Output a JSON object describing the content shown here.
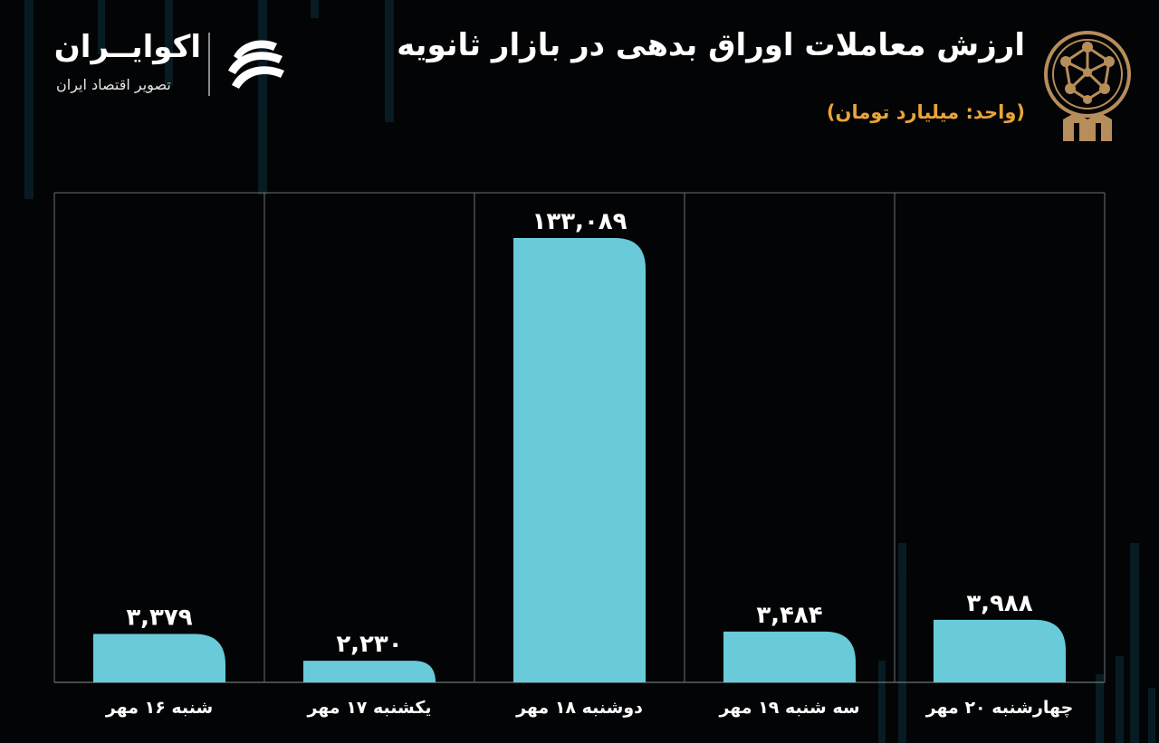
{
  "header": {
    "title": "ارزش معاملات اوراق بدهی در بازار ثانویه",
    "unit": "(واحد: میلیارد تومان)"
  },
  "brand": {
    "name": "اکوایــران",
    "tagline": "تصویر اقتصاد ایران",
    "icon": "ecoiran-logo-icon",
    "emblem_icon": "stock-exchange-emblem-icon"
  },
  "colors": {
    "bar": "#69cad9",
    "accent": "#e8a43a",
    "background": "#030405",
    "grid": "#6b6f72"
  },
  "chart_data": {
    "type": "bar",
    "title": "ارزش معاملات اوراق بدهی در بازار ثانویه",
    "ylabel": "(واحد: میلیارد تومان)",
    "categories": [
      "شنبه ۱۶ مهر",
      "یکشنبه ۱۷ مهر",
      "دوشنبه ۱۸ مهر",
      "سه شنبه ۱۹ مهر",
      "چهارشنبه ۲۰ مهر"
    ],
    "values": [
      3379,
      2230,
      133089,
      3484,
      3988
    ],
    "value_labels": [
      "۳,۳۷۹",
      "۲,۲۳۰",
      "۱۳۳,۰۸۹",
      "۳,۴۸۴",
      "۳,۹۸۸"
    ],
    "grid": true,
    "legend": "none",
    "axis_scale": "non-linear (bar heights not proportional to values)"
  }
}
